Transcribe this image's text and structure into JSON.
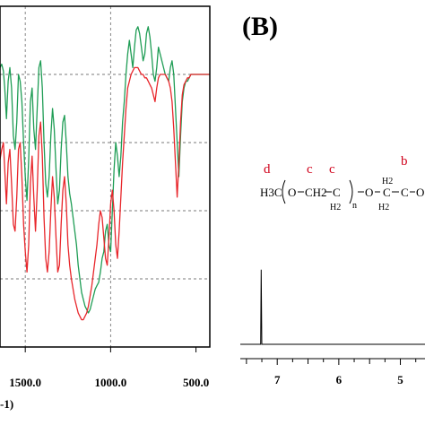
{
  "panel_b_label": "(B)",
  "ir_xlabel_fragment": "-1)",
  "structure": {
    "end_group": "H3C",
    "o1": "O",
    "ch2": "CH2",
    "c1": "C",
    "h2_1": "H2",
    "n": "n",
    "o2": "O",
    "c2": "C",
    "h2_2": "H2",
    "h2_3": "H2",
    "c3": "C",
    "tail": "O"
  },
  "peak_labels": [
    "d",
    "c",
    "c",
    "b"
  ],
  "colors": {
    "green": "#1f9d55",
    "red": "#e8262b",
    "grid": "#7a7a7a",
    "axis": "#000000"
  },
  "chart_data": [
    {
      "type": "line",
      "title": "",
      "xlabel": "",
      "ylabel": "",
      "x_reversed": true,
      "xlim": [
        1648,
        419
      ],
      "ylim": [
        0,
        100
      ],
      "grid": true,
      "tick_labels": [
        "1500.0",
        "1000.0",
        "500.0"
      ],
      "series": [
        {
          "color": "#1f9d55",
          "x": [
            1648,
            1638,
            1628,
            1620,
            1610,
            1600,
            1590,
            1580,
            1570,
            1560,
            1550,
            1540,
            1530,
            1520,
            1510,
            1500,
            1490,
            1480,
            1470,
            1460,
            1450,
            1440,
            1430,
            1420,
            1410,
            1400,
            1390,
            1380,
            1370,
            1360,
            1350,
            1340,
            1330,
            1320,
            1310,
            1300,
            1290,
            1280,
            1270,
            1260,
            1250,
            1240,
            1230,
            1220,
            1210,
            1200,
            1190,
            1180,
            1170,
            1160,
            1150,
            1140,
            1130,
            1120,
            1110,
            1100,
            1090,
            1080,
            1070,
            1060,
            1050,
            1040,
            1030,
            1020,
            1010,
            1000,
            990,
            980,
            970,
            960,
            950,
            940,
            930,
            920,
            910,
            900,
            890,
            880,
            870,
            860,
            850,
            840,
            830,
            820,
            810,
            800,
            790,
            780,
            770,
            760,
            750,
            740,
            730,
            720,
            710,
            700,
            690,
            680,
            670,
            660,
            650,
            640,
            630,
            620,
            610,
            600,
            590,
            580,
            570,
            560,
            550,
            540,
            530,
            520,
            510,
            500,
            490,
            480,
            470,
            460,
            450,
            440,
            430,
            419
          ],
          "values": [
            82,
            83,
            81,
            76,
            67,
            78,
            82,
            76,
            62,
            58,
            66,
            80,
            78,
            72,
            60,
            50,
            43,
            55,
            72,
            76,
            64,
            58,
            70,
            82,
            84,
            76,
            60,
            48,
            44,
            50,
            62,
            70,
            64,
            52,
            42,
            46,
            58,
            66,
            68,
            60,
            50,
            45,
            42,
            38,
            34,
            30,
            24,
            20,
            16,
            14,
            12,
            11,
            10,
            11,
            13,
            15,
            17,
            18,
            19,
            22,
            26,
            28,
            34,
            36,
            30,
            28,
            40,
            52,
            60,
            56,
            50,
            56,
            66,
            72,
            80,
            86,
            90,
            86,
            82,
            88,
            93,
            94,
            92,
            88,
            84,
            86,
            92,
            94,
            91,
            86,
            80,
            78,
            82,
            88,
            86,
            84,
            82,
            80,
            79,
            78,
            82,
            84,
            80,
            70,
            60,
            50,
            62,
            72,
            76,
            78,
            78,
            79,
            80,
            80,
            80,
            80,
            80,
            80,
            80,
            80,
            80,
            80,
            80,
            80
          ]
        },
        {
          "color": "#e8262b",
          "x": [
            1648,
            1638,
            1628,
            1620,
            1610,
            1600,
            1590,
            1580,
            1570,
            1560,
            1550,
            1540,
            1530,
            1520,
            1510,
            1500,
            1490,
            1480,
            1470,
            1460,
            1450,
            1440,
            1430,
            1420,
            1410,
            1400,
            1390,
            1380,
            1370,
            1360,
            1350,
            1340,
            1330,
            1320,
            1310,
            1300,
            1290,
            1280,
            1270,
            1260,
            1250,
            1240,
            1230,
            1220,
            1210,
            1200,
            1190,
            1180,
            1170,
            1160,
            1150,
            1140,
            1130,
            1120,
            1110,
            1100,
            1090,
            1080,
            1070,
            1060,
            1050,
            1040,
            1030,
            1020,
            1010,
            1000,
            990,
            980,
            970,
            960,
            950,
            940,
            930,
            920,
            910,
            900,
            890,
            880,
            870,
            860,
            850,
            840,
            830,
            820,
            810,
            800,
            790,
            780,
            770,
            760,
            750,
            740,
            730,
            720,
            710,
            700,
            690,
            680,
            670,
            660,
            650,
            640,
            630,
            620,
            610,
            600,
            590,
            580,
            570,
            560,
            550,
            540,
            530,
            520,
            510,
            500,
            490,
            480,
            470,
            460,
            450,
            440,
            430,
            419
          ],
          "values": [
            55,
            58,
            60,
            52,
            42,
            54,
            58,
            48,
            36,
            34,
            44,
            58,
            60,
            50,
            36,
            28,
            22,
            30,
            48,
            56,
            44,
            34,
            46,
            62,
            66,
            56,
            38,
            26,
            22,
            28,
            40,
            50,
            44,
            32,
            22,
            24,
            36,
            46,
            50,
            42,
            30,
            24,
            20,
            17,
            14,
            12,
            10,
            9,
            8,
            8,
            9,
            10,
            12,
            15,
            18,
            22,
            26,
            30,
            36,
            40,
            38,
            32,
            26,
            24,
            32,
            42,
            46,
            40,
            30,
            26,
            34,
            44,
            54,
            62,
            70,
            76,
            78,
            80,
            81,
            82,
            82,
            82,
            81,
            80,
            80,
            79,
            79,
            78,
            77,
            76,
            74,
            72,
            76,
            79,
            80,
            80,
            80,
            80,
            79,
            78,
            76,
            72,
            64,
            54,
            44,
            54,
            66,
            74,
            77,
            78,
            79,
            79,
            80,
            80,
            80,
            80,
            80,
            80,
            80,
            80,
            80,
            80,
            80,
            80
          ]
        }
      ]
    },
    {
      "type": "line",
      "title": "",
      "xlabel": "",
      "ylabel": "",
      "x_reversed": true,
      "xlim": [
        7.6,
        4.6
      ],
      "ylim": [
        0,
        100
      ],
      "grid": false,
      "tick_labels": [
        "7",
        "6",
        "5"
      ],
      "series": [
        {
          "color": "#000000",
          "x": [
            7.6,
            7.3,
            7.27,
            7.26,
            7.25,
            7.23,
            7.2,
            4.6
          ],
          "values": [
            0,
            0,
            0,
            99,
            0,
            0,
            0,
            0
          ]
        }
      ]
    }
  ]
}
